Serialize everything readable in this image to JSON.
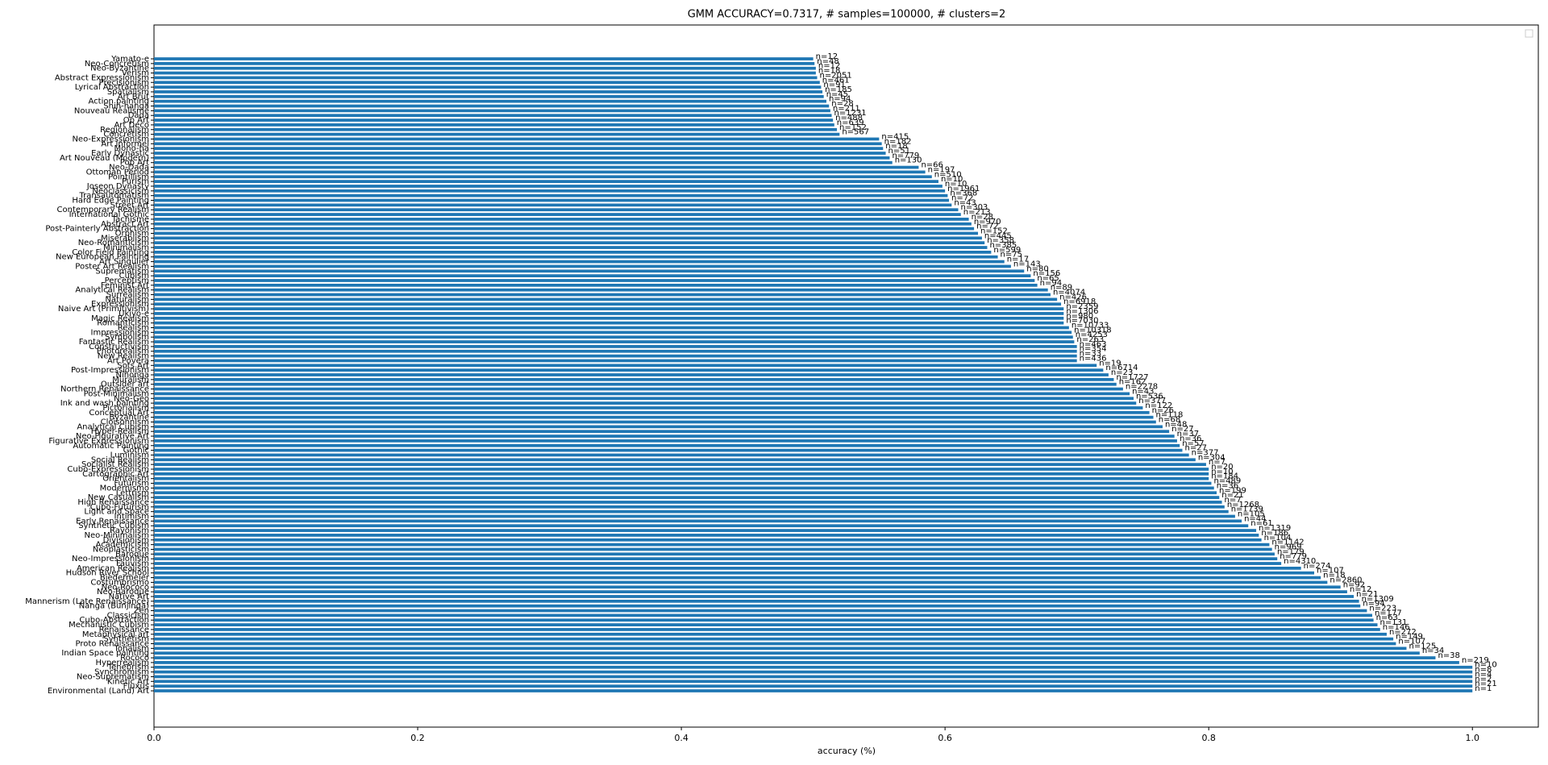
{
  "chart_data": {
    "type": "barh",
    "title": "GMM ACCURACY=0.7317, # samples=100000, # clusters=2",
    "xlabel": "accuracy (%)",
    "color": "#1f77b4",
    "xlim": [
      0,
      1.05
    ],
    "xticks": [
      {
        "value": 0,
        "label": "0.0"
      },
      0.2,
      0.4,
      0.6,
      0.8,
      {
        "value": 1,
        "label": "1.0"
      }
    ],
    "categories": [
      "Environmental (Land) Art",
      "Fluxus",
      "Kinetic Art",
      "Neo-Suprematism",
      "Synchromism",
      "Tenebrism",
      "Hyperrealism",
      "Rococo",
      "Indian Space painting",
      "Tonalism",
      "Proto Renaissance",
      "Synthetism",
      "Metaphysical art",
      "Renaissance",
      "Mechanistic Cubism",
      "Cubo-Abstraction",
      "Classicism",
      "Zen",
      "Nanga (Bunjinga)",
      "Mannerism (Late Renaissance)",
      "Native Art",
      "Neo-Baroque",
      "Neo-Rococo",
      "Costumbrismo",
      "Biedermeier",
      "Hudson River School",
      "American Realism",
      "Fauvism",
      "Neo-Impressionism",
      "Baroque",
      "Neoplasticism",
      "Academicism",
      "Divisionism",
      "Neo-Minimalism",
      "Rayonism",
      "Synthetic Cubism",
      "Early Renaissance",
      "Intimism",
      "Light and Space",
      "Cubo-Futurism",
      "High Renaissance",
      "New Casualism",
      "Lettrism",
      "Modernismo",
      "Futurism",
      "Orientalism",
      "Cartographic Art",
      "Cubo-Expressionism",
      "Socialist Realism",
      "Social Realism",
      "Luminism",
      "Gothic",
      "Automatic Painting",
      "Figurative Expressionism",
      "Neo-Figurative Art",
      "Hyper-Realism",
      "Analytical Cubism",
      "Cloisonnism",
      "Byzantine",
      "Conceptual Art",
      "Pictorialism",
      "Ink and wash painting",
      "Neo-Geo",
      "Post-Minimalism",
      "Northern Renaissance",
      "Outsider art",
      "Muralism",
      "Nihonga",
      "Post-Impressionism",
      "Sots Art",
      "Art Povera",
      "New Realism",
      "Photorealism",
      "Constructivism",
      "Fantastic Realism",
      "Symbolism",
      "Impressionism",
      "Realism",
      "Romanticism",
      "Magic Realism",
      "Ukiyo-e",
      "Naive Art (Primitivism)",
      "Expressionism",
      "Naturalism",
      "Surrealism",
      "Analytical Realism",
      "Feminist Art",
      "Perceptism",
      "Cubism",
      "Suprematism",
      "Poster Art Realism",
      "Art Singulier",
      "New European Painting",
      "Color Field Painting",
      "Minimalism",
      "Neo-Romanticism",
      "Miserablism",
      "Orphism",
      "Post-Painterly Abstraction",
      "Abstract Art",
      "Tachisme",
      "International Gothic",
      "Contemporary Realism",
      "Street Art",
      "Hard Edge Painting",
      "Transautomatism",
      "Neoclassicism",
      "Joseon Dynasty",
      "Purism",
      "Pointillism",
      "Ottoman Period",
      "Neo-Dada",
      "Pop Art",
      "Art Nouveau (Modern)",
      "Early Dynastic",
      "Mono-ha",
      "Art Informel",
      "Neo-Expressionism",
      "Concretism",
      "Regionalism",
      "Art Deco",
      "Op Art",
      "Dada",
      "Nouveau Réalisme",
      "Shin-hanga",
      "Action painting",
      "Art Brut",
      "Spatialism",
      "Lyrical Abstraction",
      "Precisionism",
      "Abstract Expressionism",
      "Verism",
      "Neo-Byzantine",
      "Neo-Concretism",
      "Yamato-e"
    ],
    "values": [
      1.0,
      1.0,
      1.0,
      1.0,
      1.0,
      1.0,
      0.99,
      0.972,
      0.96,
      0.95,
      0.942,
      0.94,
      0.935,
      0.93,
      0.928,
      0.925,
      0.924,
      0.92,
      0.915,
      0.914,
      0.91,
      0.905,
      0.9,
      0.89,
      0.885,
      0.88,
      0.87,
      0.855,
      0.852,
      0.85,
      0.848,
      0.846,
      0.84,
      0.838,
      0.836,
      0.83,
      0.825,
      0.82,
      0.815,
      0.812,
      0.81,
      0.808,
      0.806,
      0.804,
      0.802,
      0.8,
      0.8,
      0.8,
      0.798,
      0.79,
      0.785,
      0.78,
      0.778,
      0.776,
      0.774,
      0.77,
      0.765,
      0.76,
      0.758,
      0.755,
      0.75,
      0.745,
      0.743,
      0.74,
      0.735,
      0.73,
      0.728,
      0.724,
      0.72,
      0.715,
      0.7,
      0.7,
      0.7,
      0.7,
      0.698,
      0.697,
      0.696,
      0.694,
      0.69,
      0.69,
      0.69,
      0.69,
      0.688,
      0.685,
      0.68,
      0.678,
      0.67,
      0.668,
      0.665,
      0.66,
      0.65,
      0.645,
      0.64,
      0.635,
      0.632,
      0.63,
      0.628,
      0.625,
      0.622,
      0.62,
      0.618,
      0.612,
      0.61,
      0.605,
      0.603,
      0.602,
      0.6,
      0.598,
      0.595,
      0.59,
      0.585,
      0.58,
      0.56,
      0.558,
      0.555,
      0.553,
      0.552,
      0.55,
      0.52,
      0.518,
      0.516,
      0.515,
      0.514,
      0.513,
      0.512,
      0.51,
      0.508,
      0.507,
      0.506,
      0.505,
      0.503,
      0.502,
      0.502,
      0.501,
      0.5
    ],
    "annotations": [
      "n=1",
      "n=21",
      "n=2",
      "n=4",
      "n=8",
      "n=10",
      "n=219",
      "n=38",
      "n=34",
      "n=125",
      "n=107",
      "n=149",
      "n=272",
      "n=146",
      "n=131",
      "n=63",
      "n=177",
      "n=223",
      "n=94",
      "n=1309",
      "n=21",
      "n=12",
      "n=92",
      "n=2860",
      "n=18",
      "n=107",
      "n=274",
      "n=4310",
      "n=779",
      "n=179",
      "n=969",
      "n=1142",
      "n=104",
      "n=186",
      "n=1319",
      "n=61",
      "n=44",
      "n=105",
      "n=1739",
      "n=1268",
      "n=7",
      "n=21",
      "n=199",
      "n=36",
      "n=489",
      "n=184",
      "n=10",
      "n=20",
      "n=7",
      "n=304",
      "n=377",
      "n=27",
      "n=57",
      "n=36",
      "n=37",
      "n=27",
      "n=48",
      "n=68",
      "n=118",
      "n=26",
      "n=122",
      "n=377",
      "n=536",
      "n=43",
      "n=2278",
      "n=162",
      "n=1727",
      "n=23",
      "n=6714",
      "n=19",
      "n=436",
      "n=33",
      "n=354",
      "n=463",
      "n=263",
      "n=4253",
      "n=10318",
      "n=10733",
      "n=7030",
      "n=980",
      "n=1306",
      "n=2359",
      "n=6918",
      "n=426",
      "n=4074",
      "n=89",
      "n=94",
      "n=65",
      "n=156",
      "n=80",
      "n=143",
      "n=17",
      "n=75",
      "n=599",
      "n=385",
      "n=358",
      "n=445",
      "n=152",
      "n=72",
      "n=970",
      "n=28",
      "n=213",
      "n=303",
      "n=43",
      "n=72",
      "n=368",
      "n=1961",
      "n=10",
      "n=10",
      "n=510",
      "n=197",
      "n=66",
      "n=130",
      "n=779",
      "n=51",
      "n=18",
      "n=182",
      "n=415",
      "n=567",
      "n=152",
      "n=639",
      "n=488",
      "n=1231",
      "n=211",
      "n=28",
      "n=94",
      "n=45",
      "n=185",
      "n=91",
      "n=461",
      "n=2051",
      "n=18",
      "n=12",
      "n=48",
      "n=12"
    ],
    "legend": "upper right"
  }
}
